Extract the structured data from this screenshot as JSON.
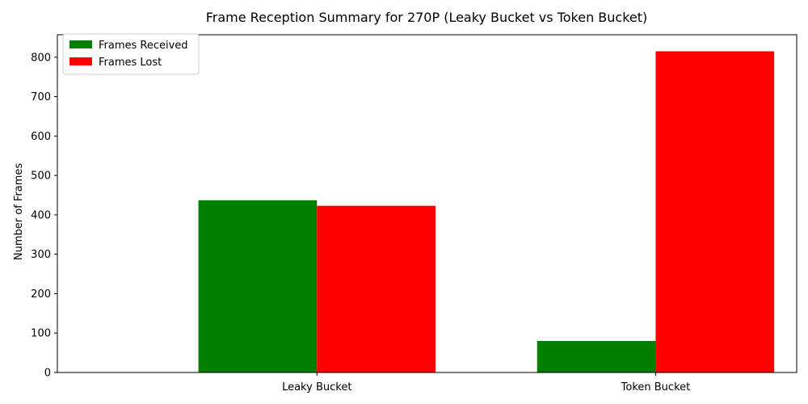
{
  "chart_data": {
    "type": "bar",
    "title": "Frame Reception Summary for 270P (Leaky Bucket vs Token Bucket)",
    "xlabel": "",
    "ylabel": "Number of Frames",
    "categories": [
      "Leaky Bucket",
      "Token Bucket"
    ],
    "series": [
      {
        "name": "Frames Received",
        "color": "#008000",
        "values": [
          437,
          80
        ]
      },
      {
        "name": "Frames Lost",
        "color": "#ff0000",
        "values": [
          423,
          815
        ]
      }
    ],
    "ylim": [
      0,
      857
    ],
    "yticks": [
      0,
      100,
      200,
      300,
      400,
      500,
      600,
      700,
      800
    ],
    "grid": false,
    "legend_position": "top-left"
  }
}
